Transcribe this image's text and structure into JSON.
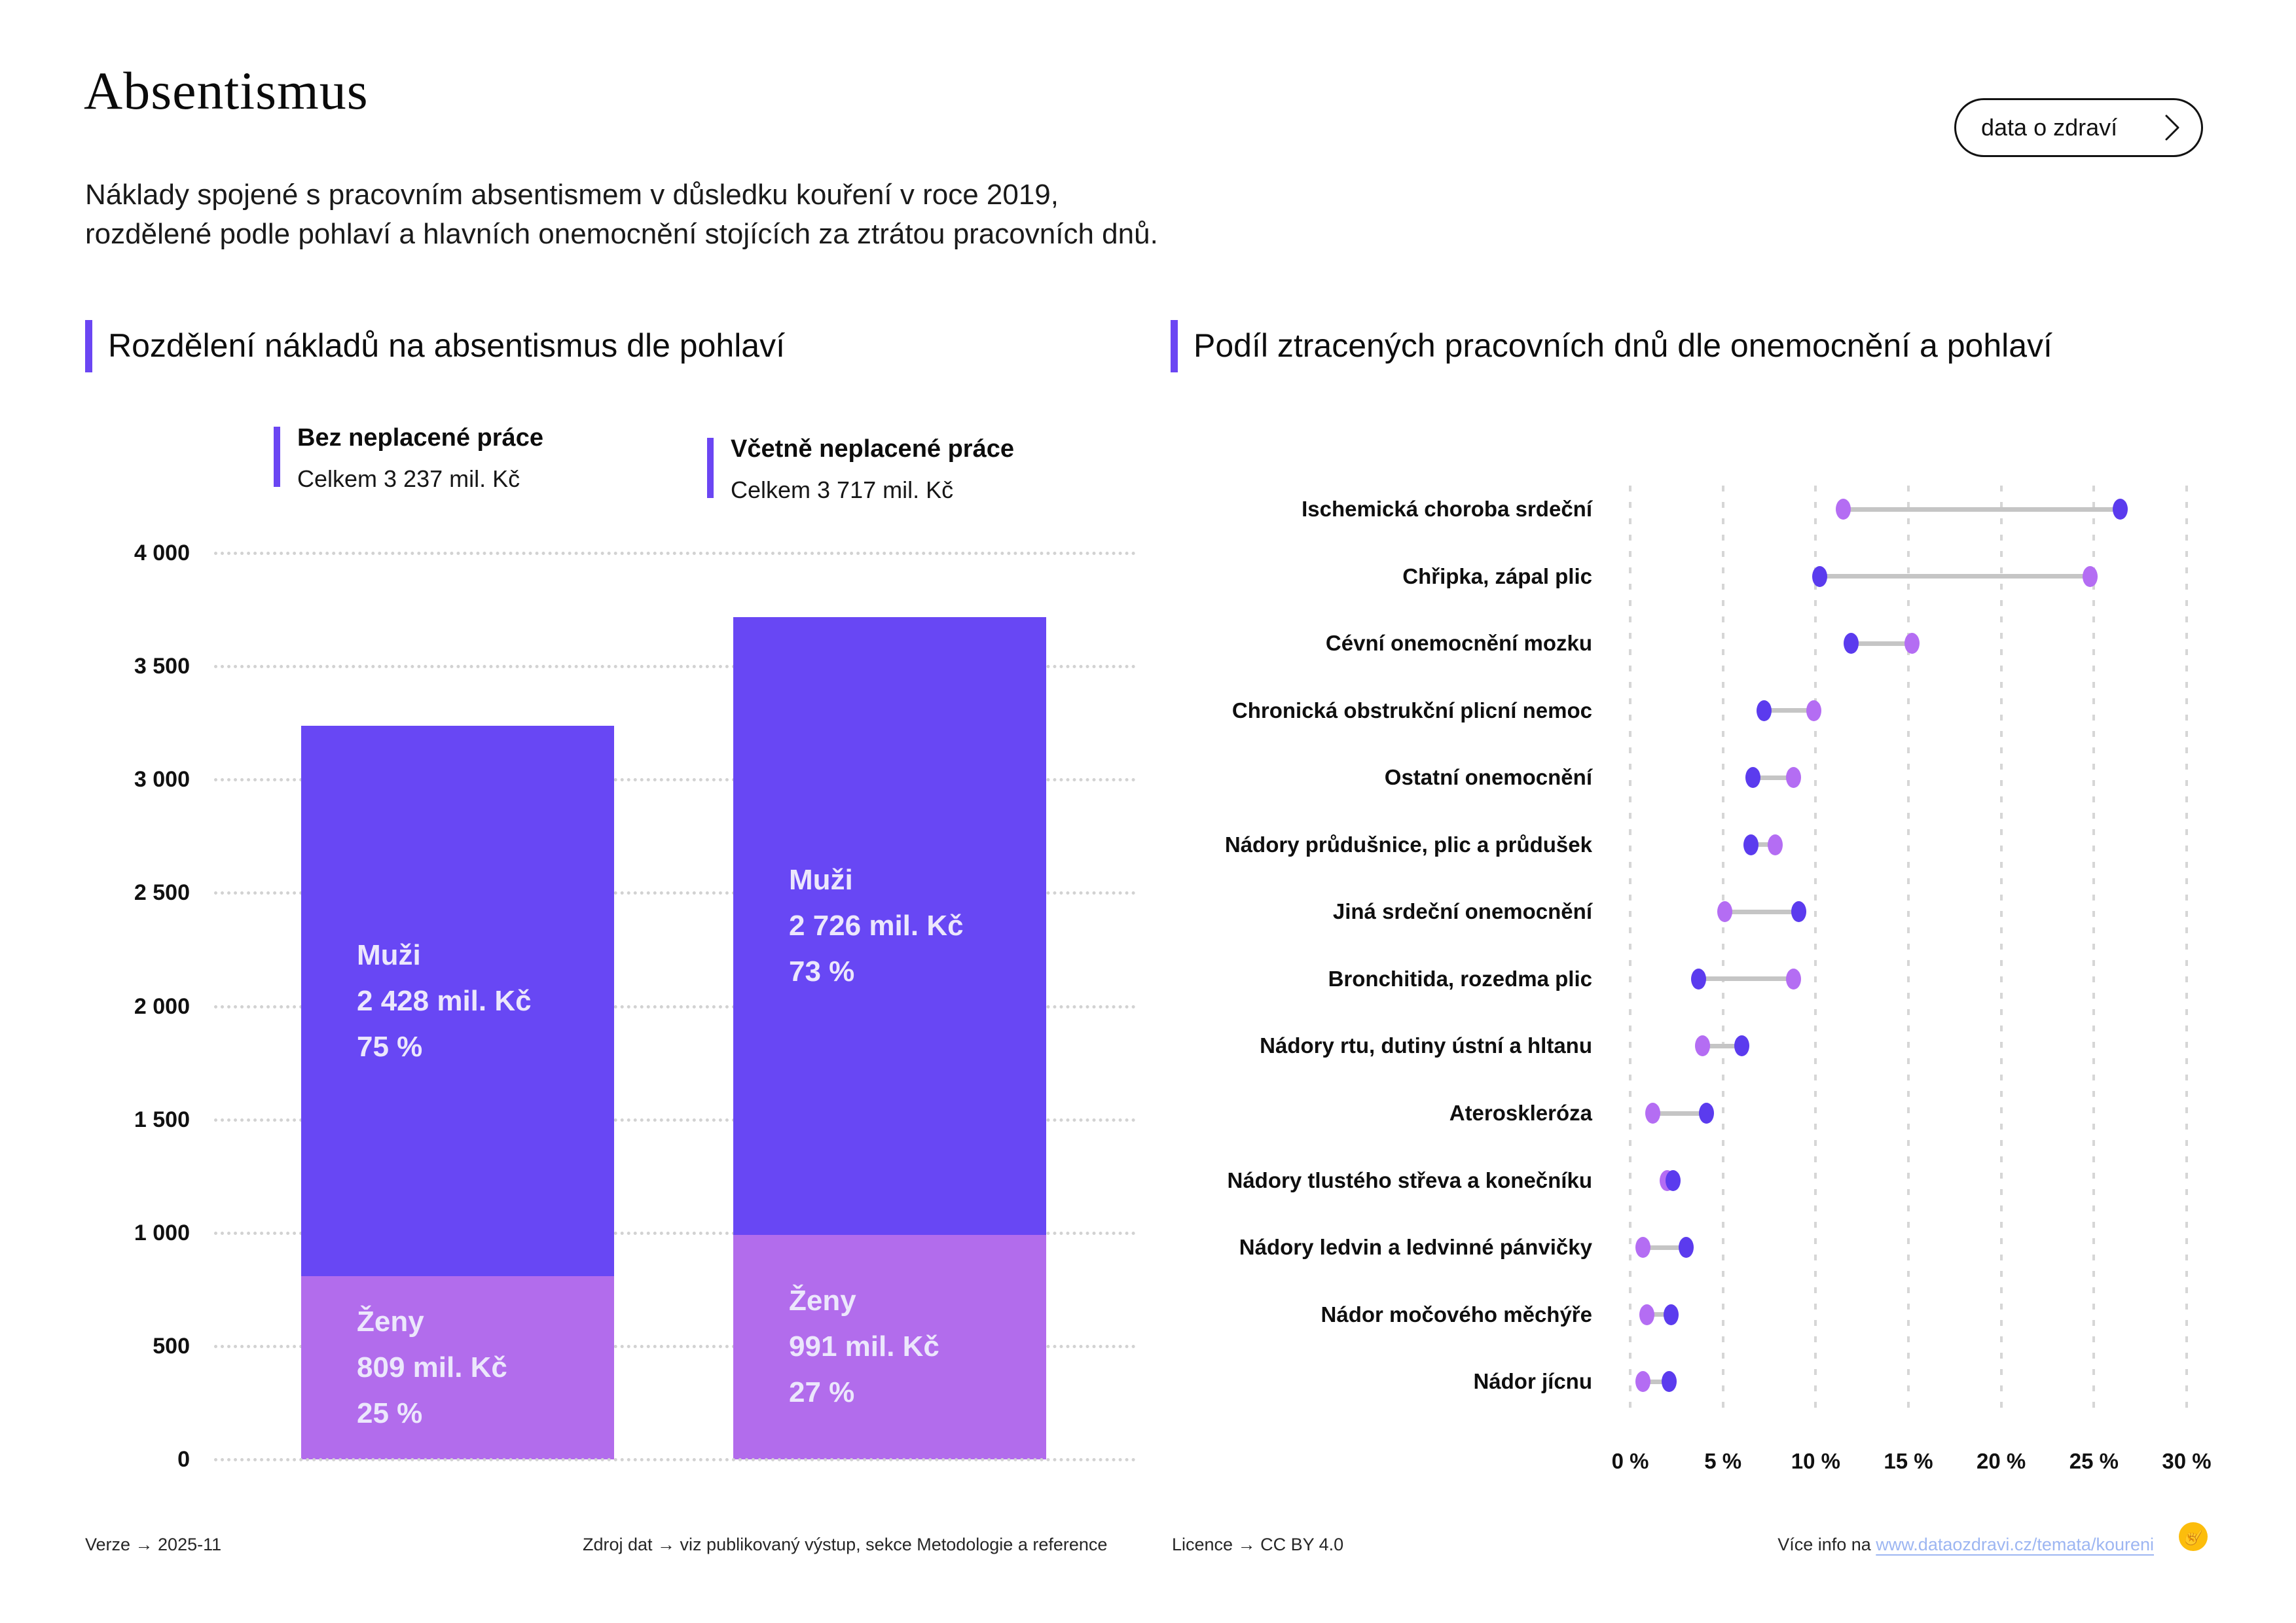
{
  "header": {
    "title": "Absentismus",
    "subtitle_line1": "Náklady spojené s pracovním absentismem v důsledku kouření v roce 2019,",
    "subtitle_line2": "rozdělené podle pohlaví a hlavních onemocnění stojících za ztrátou pracovních dnů.",
    "button_label": "data o zdraví"
  },
  "left_chart": {
    "section_title": "Rozdělení nákladů na absentismus dle pohlaví",
    "y_ticks": [
      "4 000",
      "3 500",
      "3 000",
      "2 500",
      "2 000",
      "1 500",
      "1 000",
      "500",
      "0"
    ],
    "legends": [
      {
        "title": "Bez neplacené práce",
        "total": "Celkem 3 237 mil. Kč"
      },
      {
        "title": "Včetně neplacené práce",
        "total": "Celkem 3 717 mil. Kč"
      }
    ],
    "bars": [
      {
        "muzi": {
          "name": "Muži",
          "value": "2 428 mil. Kč",
          "pct": "75 %"
        },
        "zeny": {
          "name": "Ženy",
          "value": "809 mil. Kč",
          "pct": "25 %"
        }
      },
      {
        "muzi": {
          "name": "Muži",
          "value": "2 726 mil. Kč",
          "pct": "73 %"
        },
        "zeny": {
          "name": "Ženy",
          "value": "991 mil. Kč",
          "pct": "27 %"
        }
      }
    ]
  },
  "right_chart": {
    "section_title": "Podíl ztracených pracovních dnů dle onemocnění a pohlaví",
    "x_ticks": [
      "0 %",
      "5 %",
      "10 %",
      "15 %",
      "20 %",
      "25 %",
      "30 %"
    ]
  },
  "footer": {
    "version": "Verze  →  2025-11",
    "source": "Zdroj dat  →  viz publikovaný výstup, sekce Metodologie a reference",
    "licence": "Licence  →  CC BY 4.0",
    "more_prefix": "Více info na ",
    "more_link": "www.dataozdravi.cz/temata/koureni",
    "logo_icon": "☝"
  },
  "colors": {
    "accent": "#6b46f3",
    "bar_muzi": "#6847f4",
    "bar_zeny": "#b26cec",
    "dot_muzi": "#5b3bee",
    "dot_zeny": "#b46df3",
    "connector": "#c5c5c5",
    "grid_dotted": "#d2d2d2",
    "grid_dashed": "#d6d6d6",
    "bar_text": "#ece7fc",
    "link": "#9db6f2",
    "logo_bg": "#fcbd0c"
  },
  "chart_data": [
    {
      "type": "bar",
      "title": "Rozdělení nákladů na absentismus dle pohlaví",
      "categories": [
        "Bez neplacené práce",
        "Včetně neplacené práce"
      ],
      "series": [
        {
          "name": "Muži",
          "values": [
            2428,
            2726
          ],
          "pct": [
            "75 %",
            "73 %"
          ]
        },
        {
          "name": "Ženy",
          "values": [
            809,
            991
          ],
          "pct": [
            "25 %",
            "27 %"
          ]
        }
      ],
      "totals": [
        3237,
        3717
      ],
      "stacked": true,
      "unit": "mil. Kč",
      "ylabel": "mil. Kč",
      "ylim": [
        0,
        4000
      ],
      "ytick_step": 500,
      "grid": "dotted horizontal"
    },
    {
      "type": "scatter",
      "subtype": "dumbbell",
      "title": "Podíl ztracených pracovních dnů dle onemocnění a pohlaví",
      "categories": [
        "Ischemická choroba srdeční",
        "Chřipka, zápal plic",
        "Cévní onemocnění mozku",
        "Chronická obstrukční plicní nemoc",
        "Ostatní onemocnění",
        "Nádory průdušnice, plic a průdušek",
        "Jiná srdeční onemocnění",
        "Bronchitida, rozedma plic",
        "Nádory rtu, dutiny ústní a hltanu",
        "Ateroskleróza",
        "Nádory tlustého střeva a konečníku",
        "Nádory ledvin a ledvinné pánvičky",
        "Nádor močového měchýře",
        "Nádor jícnu"
      ],
      "series": [
        {
          "name": "Muži",
          "values": [
            26.4,
            10.2,
            11.9,
            7.2,
            6.6,
            6.5,
            9.1,
            3.7,
            6.0,
            4.1,
            2.3,
            3.0,
            2.2,
            2.1
          ]
        },
        {
          "name": "Ženy",
          "values": [
            11.5,
            24.8,
            15.2,
            9.9,
            8.8,
            7.8,
            5.1,
            8.8,
            3.9,
            1.2,
            2.0,
            0.7,
            0.9,
            0.7
          ]
        }
      ],
      "unit": "%",
      "xlim": [
        0,
        30
      ],
      "xtick_step": 5,
      "grid": "dashed vertical"
    }
  ]
}
